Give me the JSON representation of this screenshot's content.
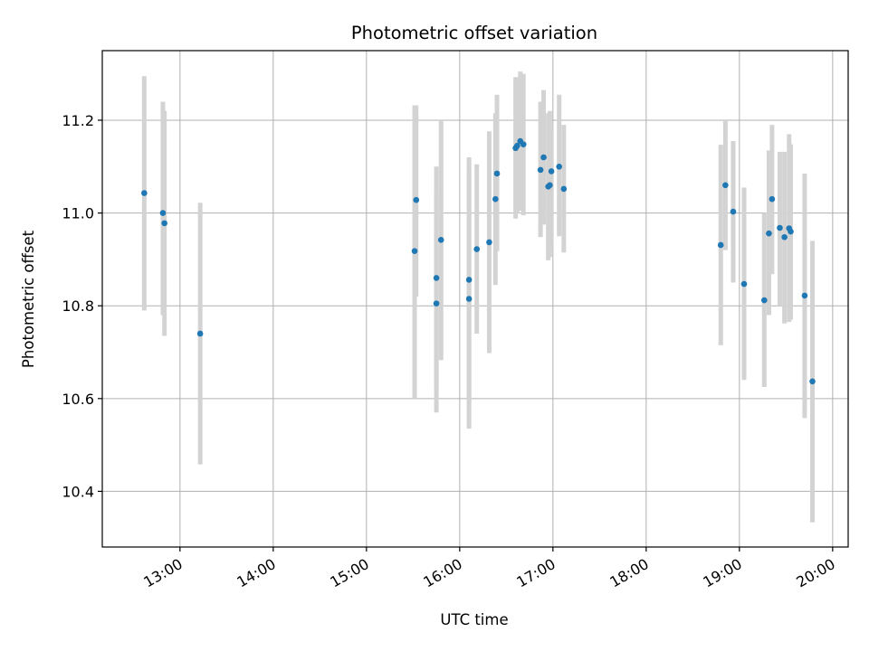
{
  "chart_data": {
    "type": "scatter",
    "title": "Photometric offset variation",
    "xlabel": "UTC time",
    "ylabel": "Photometric offset",
    "x_axis": "time",
    "xlim": [
      "12:10",
      "20:10"
    ],
    "ylim": [
      10.28,
      11.35
    ],
    "grid": true,
    "x_ticks": [
      "13:00",
      "14:00",
      "15:00",
      "16:00",
      "17:00",
      "18:00",
      "19:00",
      "20:00"
    ],
    "y_ticks": [
      "10.4",
      "10.6",
      "10.8",
      "11.0",
      "11.2"
    ],
    "point_color": "#1f77b4",
    "errorbar_color": "#d3d3d3",
    "points": [
      {
        "time": "12:37",
        "offset": 11.043,
        "low": 10.79,
        "high": 11.295
      },
      {
        "time": "12:49",
        "offset": 11.0,
        "low": 10.78,
        "high": 11.24
      },
      {
        "time": "12:50",
        "offset": 10.978,
        "low": 10.735,
        "high": 11.22
      },
      {
        "time": "13:13",
        "offset": 10.74,
        "low": 10.458,
        "high": 11.022
      },
      {
        "time": "15:31",
        "offset": 10.918,
        "low": 10.6,
        "high": 11.232
      },
      {
        "time": "15:32",
        "offset": 11.028,
        "low": 10.82,
        "high": 11.232
      },
      {
        "time": "15:45",
        "offset": 10.805,
        "low": 10.57,
        "high": 11.04
      },
      {
        "time": "15:45",
        "offset": 10.86,
        "low": 10.62,
        "high": 11.1
      },
      {
        "time": "15:48",
        "offset": 10.942,
        "low": 10.683,
        "high": 11.2
      },
      {
        "time": "16:06",
        "offset": 10.856,
        "low": 10.59,
        "high": 11.12
      },
      {
        "time": "16:06",
        "offset": 10.815,
        "low": 10.535,
        "high": 11.095
      },
      {
        "time": "16:11",
        "offset": 10.922,
        "low": 10.74,
        "high": 11.105
      },
      {
        "time": "16:19",
        "offset": 10.937,
        "low": 10.698,
        "high": 11.176
      },
      {
        "time": "16:23",
        "offset": 11.03,
        "low": 10.845,
        "high": 11.215
      },
      {
        "time": "16:24",
        "offset": 11.085,
        "low": 10.918,
        "high": 11.255
      },
      {
        "time": "16:36",
        "offset": 11.14,
        "low": 10.988,
        "high": 11.293
      },
      {
        "time": "16:37",
        "offset": 11.145,
        "low": 11.0,
        "high": 11.29
      },
      {
        "time": "16:39",
        "offset": 11.155,
        "low": 11.005,
        "high": 11.305
      },
      {
        "time": "16:41",
        "offset": 11.148,
        "low": 10.995,
        "high": 11.3
      },
      {
        "time": "16:52",
        "offset": 11.093,
        "low": 10.948,
        "high": 11.24
      },
      {
        "time": "16:54",
        "offset": 11.12,
        "low": 10.975,
        "high": 11.265
      },
      {
        "time": "16:57",
        "offset": 11.057,
        "low": 10.898,
        "high": 11.215
      },
      {
        "time": "16:58",
        "offset": 11.06,
        "low": 10.905,
        "high": 11.22
      },
      {
        "time": "16:59",
        "offset": 11.09,
        "low": 10.925,
        "high": 11.18
      },
      {
        "time": "17:04",
        "offset": 11.1,
        "low": 10.95,
        "high": 11.255
      },
      {
        "time": "17:07",
        "offset": 11.052,
        "low": 10.915,
        "high": 11.19
      },
      {
        "time": "18:48",
        "offset": 10.931,
        "low": 10.715,
        "high": 11.147
      },
      {
        "time": "18:51",
        "offset": 11.06,
        "low": 10.92,
        "high": 11.2
      },
      {
        "time": "18:56",
        "offset": 11.003,
        "low": 10.85,
        "high": 11.155
      },
      {
        "time": "19:03",
        "offset": 10.847,
        "low": 10.64,
        "high": 11.055
      },
      {
        "time": "19:16",
        "offset": 10.812,
        "low": 10.625,
        "high": 11.0
      },
      {
        "time": "19:19",
        "offset": 10.956,
        "low": 10.78,
        "high": 11.135
      },
      {
        "time": "19:21",
        "offset": 11.03,
        "low": 10.868,
        "high": 11.19
      },
      {
        "time": "19:26",
        "offset": 10.968,
        "low": 10.8,
        "high": 11.132
      },
      {
        "time": "19:29",
        "offset": 10.948,
        "low": 10.762,
        "high": 11.132
      },
      {
        "time": "19:32",
        "offset": 10.967,
        "low": 10.765,
        "high": 11.17
      },
      {
        "time": "19:33",
        "offset": 10.96,
        "low": 10.77,
        "high": 11.148
      },
      {
        "time": "19:42",
        "offset": 10.822,
        "low": 10.558,
        "high": 11.085
      },
      {
        "time": "19:47",
        "offset": 10.637,
        "low": 10.333,
        "high": 10.94
      }
    ]
  }
}
